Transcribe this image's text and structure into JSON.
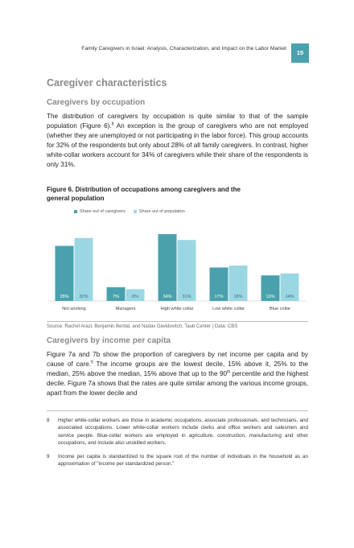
{
  "header": {
    "running_title": "Family Caregivers in Israel: Analysis, Characterization, and Impact on the Labor Market",
    "page_number": "15",
    "accent_color": "#4aa1ad"
  },
  "section": {
    "title": "Caregiver characteristics",
    "occupation_heading": "Caregivers by occupation",
    "occupation_para_a": "The distribution of caregivers by occupation is quite similar to that of the sample population (Figure 6).",
    "occupation_para_sup": "8",
    "occupation_para_b": " An exception is the group of caregivers who are not employed (whether they are unemployed or not participating in the labor force). This group accounts for 32% of the respondents but only about 28% of all family caregivers. In contrast, higher white-collar workers account for 34% of caregivers while their share of the respondents is only 31%.",
    "income_heading": "Caregivers by income per capita",
    "income_para_a": "Figure 7a and 7b show the proportion of caregivers by net income per capita and by cause of care.",
    "income_para_sup1": "9",
    "income_para_b": " The income groups are the lowest decile, 15% above it, 25% to the median, 25% above the median, 15% above that up to the 90",
    "income_para_sup2": "th",
    "income_para_c": " percentile and the highest decile. Figure 7a shows that the rates are quite similar among the various income groups, apart from the lower decile and"
  },
  "figure": {
    "title_line1": "Figure 6. Distribution of occupations among caregivers and the",
    "title_line2": "general population",
    "source": "Source: Rachel Arazi, Benjamin Bental, and Nadav Davidovitch, Taub Center | Data: CBS"
  },
  "chart_data": {
    "type": "bar",
    "categories": [
      "Not working",
      "Managers",
      "High white collar",
      "Low white collar",
      "Blue collar"
    ],
    "series": [
      {
        "name": "Share out of caregivers",
        "values": [
          28,
          7,
          34,
          17,
          13
        ],
        "labels": [
          "28%",
          "7%",
          "34%",
          "17%",
          "13%"
        ],
        "color": "#4aa1ad"
      },
      {
        "name": "Share out of population",
        "values": [
          32,
          6,
          31,
          18,
          14
        ],
        "labels": [
          "32%",
          "6%",
          "31%",
          "18%",
          "14%"
        ],
        "color": "#9bd7e3"
      }
    ],
    "ylim": [
      0,
      36
    ],
    "legend_position": "top-left",
    "grid": false
  },
  "footnotes": [
    {
      "num": "8",
      "text": "Higher white-collar workers are those in academic occupations, associate professionals, and technicians, and associated occupations. Lower white-collar workers include clerks and office workers and salesmen and service people. Blue-collar workers are employed in agriculture, construction, manufacturing and other occupations, and include also unskilled workers."
    },
    {
      "num": "9",
      "text": "Income per capita is standardized to the square root of the number of individuals in the household as an approximation of \"income per standardized person.\""
    }
  ]
}
